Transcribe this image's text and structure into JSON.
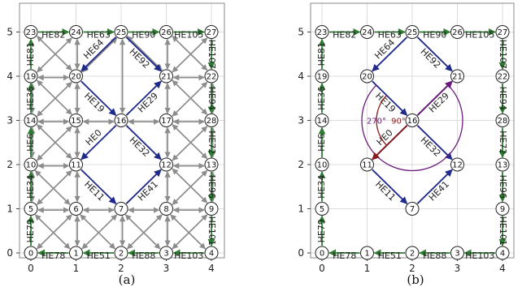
{
  "colors": {
    "grid": "#dcdcdc",
    "gray_edge": "#8c8c8c",
    "boundary": "#2e7d32",
    "interior": "#1f2a8a",
    "angle_red": "#8b1a1a",
    "angle_purple": "#6a1b7a"
  },
  "panels": [
    {
      "caption": "(a)",
      "x_ticks": [
        "0",
        "1",
        "2",
        "3",
        "4"
      ],
      "y_ticks": [
        "0",
        "1",
        "2",
        "3",
        "4",
        "5"
      ],
      "vertices": [
        {
          "id": "0",
          "x": 0,
          "y": 0
        },
        {
          "id": "1",
          "x": 1,
          "y": 0
        },
        {
          "id": "2",
          "x": 2,
          "y": 0
        },
        {
          "id": "3",
          "x": 3,
          "y": 0
        },
        {
          "id": "4",
          "x": 4,
          "y": 0
        },
        {
          "id": "5",
          "x": 0,
          "y": 1
        },
        {
          "id": "6",
          "x": 1,
          "y": 1
        },
        {
          "id": "7",
          "x": 2,
          "y": 1
        },
        {
          "id": "8",
          "x": 3,
          "y": 1
        },
        {
          "id": "9",
          "x": 4,
          "y": 1
        },
        {
          "id": "10",
          "x": 0,
          "y": 2
        },
        {
          "id": "11",
          "x": 1,
          "y": 2
        },
        {
          "id": "12",
          "x": 3,
          "y": 2
        },
        {
          "id": "13",
          "x": 4,
          "y": 2
        },
        {
          "id": "14",
          "x": 0,
          "y": 3
        },
        {
          "id": "15",
          "x": 1,
          "y": 3
        },
        {
          "id": "16",
          "x": 2,
          "y": 3
        },
        {
          "id": "17",
          "x": 3,
          "y": 3
        },
        {
          "id": "28",
          "x": 4,
          "y": 3
        },
        {
          "id": "19",
          "x": 0,
          "y": 4
        },
        {
          "id": "20",
          "x": 1,
          "y": 4
        },
        {
          "id": "21",
          "x": 3,
          "y": 4
        },
        {
          "id": "22",
          "x": 4,
          "y": 4
        },
        {
          "id": "23",
          "x": 0,
          "y": 5
        },
        {
          "id": "24",
          "x": 1,
          "y": 5
        },
        {
          "id": "25",
          "x": 2,
          "y": 5
        },
        {
          "id": "26",
          "x": 3,
          "y": 5
        },
        {
          "id": "27",
          "x": 4,
          "y": 5
        }
      ],
      "gray_edges": [
        [
          "5",
          "6"
        ],
        [
          "6",
          "7"
        ],
        [
          "7",
          "8"
        ],
        [
          "8",
          "9"
        ],
        [
          "10",
          "11"
        ],
        [
          "12",
          "13"
        ],
        [
          "14",
          "15"
        ],
        [
          "15",
          "16"
        ],
        [
          "16",
          "17"
        ],
        [
          "17",
          "28"
        ],
        [
          "19",
          "20"
        ],
        [
          "21",
          "22"
        ],
        [
          "5",
          "10"
        ],
        [
          "10",
          "14"
        ],
        [
          "14",
          "19"
        ],
        [
          "1",
          "6"
        ],
        [
          "6",
          "11"
        ],
        [
          "11",
          "15"
        ],
        [
          "15",
          "20"
        ],
        [
          "20",
          "24"
        ],
        [
          "2",
          "7"
        ],
        [
          "3",
          "8"
        ],
        [
          "8",
          "12"
        ],
        [
          "12",
          "17"
        ],
        [
          "17",
          "21"
        ],
        [
          "21",
          "26"
        ],
        [
          "9",
          "13"
        ],
        [
          "13",
          "28"
        ],
        [
          "28",
          "22"
        ],
        [
          "16",
          "25"
        ],
        [
          "0",
          "6"
        ],
        [
          "5",
          "1"
        ],
        [
          "1",
          "7"
        ],
        [
          "6",
          "2"
        ],
        [
          "2",
          "8"
        ],
        [
          "7",
          "3"
        ],
        [
          "3",
          "9"
        ],
        [
          "8",
          "4"
        ],
        [
          "5",
          "11"
        ],
        [
          "10",
          "6"
        ],
        [
          "8",
          "13"
        ],
        [
          "9",
          "12"
        ],
        [
          "10",
          "15"
        ],
        [
          "11",
          "14"
        ],
        [
          "12",
          "28"
        ],
        [
          "13",
          "17"
        ],
        [
          "14",
          "20"
        ],
        [
          "15",
          "19"
        ],
        [
          "17",
          "22"
        ],
        [
          "28",
          "21"
        ],
        [
          "19",
          "24"
        ],
        [
          "20",
          "23"
        ],
        [
          "20",
          "25"
        ],
        [
          "21",
          "27"
        ],
        [
          "22",
          "26"
        ],
        [
          "21",
          "25"
        ]
      ],
      "boundary_edges": [
        {
          "from": "23",
          "to": "24",
          "label": "HE82"
        },
        {
          "from": "24",
          "to": "25",
          "label": "HE63"
        },
        {
          "from": "25",
          "to": "26",
          "label": "HE90"
        },
        {
          "from": "26",
          "to": "27",
          "label": "HE105"
        },
        {
          "from": "27",
          "to": "22",
          "label": "HE107"
        },
        {
          "from": "22",
          "to": "28",
          "label": "HE94"
        },
        {
          "from": "28",
          "to": "13",
          "label": "HE72"
        },
        {
          "from": "13",
          "to": "9",
          "label": "HE96"
        },
        {
          "from": "9",
          "to": "4",
          "label": "HE101"
        },
        {
          "from": "4",
          "to": "3",
          "label": "HE103"
        },
        {
          "from": "3",
          "to": "2",
          "label": "HE88"
        },
        {
          "from": "2",
          "to": "1",
          "label": "HE51"
        },
        {
          "from": "1",
          "to": "0",
          "label": "HE78"
        },
        {
          "from": "0",
          "to": "5",
          "label": "HE79"
        },
        {
          "from": "5",
          "to": "10",
          "label": "HE34"
        },
        {
          "from": "10",
          "to": "14",
          "label": "HE6"
        },
        {
          "from": "14",
          "to": "19",
          "label": "HE36"
        },
        {
          "from": "19",
          "to": "23",
          "label": "HE81"
        }
      ],
      "interior_edges": [
        {
          "from": "25",
          "to": "20",
          "label": "HE64"
        },
        {
          "from": "25",
          "to": "21",
          "label": "HE92"
        },
        {
          "from": "20",
          "to": "16",
          "label": "HE19"
        },
        {
          "from": "16",
          "to": "21",
          "label": "HE29"
        },
        {
          "from": "16",
          "to": "11",
          "label": "HE0"
        },
        {
          "from": "16",
          "to": "12",
          "label": "HE32"
        },
        {
          "from": "11",
          "to": "7",
          "label": "HE11"
        },
        {
          "from": "7",
          "to": "12",
          "label": "HE41"
        }
      ]
    },
    {
      "caption": "(b)",
      "x_ticks": [
        "0",
        "1",
        "2",
        "3",
        "4"
      ],
      "y_ticks": [
        "0",
        "1",
        "2",
        "3",
        "4",
        "5"
      ],
      "vertices": [
        {
          "id": "0",
          "x": 0,
          "y": 0
        },
        {
          "id": "1",
          "x": 1,
          "y": 0
        },
        {
          "id": "2",
          "x": 2,
          "y": 0
        },
        {
          "id": "3",
          "x": 3,
          "y": 0
        },
        {
          "id": "4",
          "x": 4,
          "y": 0
        },
        {
          "id": "5",
          "x": 0,
          "y": 1
        },
        {
          "id": "7",
          "x": 2,
          "y": 1
        },
        {
          "id": "9",
          "x": 4,
          "y": 1
        },
        {
          "id": "10",
          "x": 0,
          "y": 2
        },
        {
          "id": "11",
          "x": 1,
          "y": 2
        },
        {
          "id": "12",
          "x": 3,
          "y": 2
        },
        {
          "id": "13",
          "x": 4,
          "y": 2
        },
        {
          "id": "14",
          "x": 0,
          "y": 3
        },
        {
          "id": "16",
          "x": 2,
          "y": 3
        },
        {
          "id": "28",
          "x": 4,
          "y": 3
        },
        {
          "id": "19",
          "x": 0,
          "y": 4
        },
        {
          "id": "20",
          "x": 1,
          "y": 4
        },
        {
          "id": "21",
          "x": 3,
          "y": 4
        },
        {
          "id": "22",
          "x": 4,
          "y": 4
        },
        {
          "id": "23",
          "x": 0,
          "y": 5
        },
        {
          "id": "24",
          "x": 1,
          "y": 5
        },
        {
          "id": "25",
          "x": 2,
          "y": 5
        },
        {
          "id": "26",
          "x": 3,
          "y": 5
        },
        {
          "id": "27",
          "x": 4,
          "y": 5
        }
      ],
      "gray_edges": [],
      "boundary_edges": [
        {
          "from": "23",
          "to": "24",
          "label": "HE82"
        },
        {
          "from": "24",
          "to": "25",
          "label": "HE63"
        },
        {
          "from": "25",
          "to": "26",
          "label": "HE90"
        },
        {
          "from": "26",
          "to": "27",
          "label": "HE105"
        },
        {
          "from": "27",
          "to": "22",
          "label": "HE107"
        },
        {
          "from": "22",
          "to": "28",
          "label": "HE94"
        },
        {
          "from": "28",
          "to": "13",
          "label": "HE72"
        },
        {
          "from": "13",
          "to": "9",
          "label": "HE96"
        },
        {
          "from": "9",
          "to": "4",
          "label": "HE101"
        },
        {
          "from": "4",
          "to": "3",
          "label": "HE103"
        },
        {
          "from": "3",
          "to": "2",
          "label": "HE88"
        },
        {
          "from": "2",
          "to": "1",
          "label": "HE51"
        },
        {
          "from": "1",
          "to": "0",
          "label": "HE78"
        },
        {
          "from": "0",
          "to": "5",
          "label": "HE79"
        },
        {
          "from": "5",
          "to": "10",
          "label": "HE34"
        },
        {
          "from": "10",
          "to": "14",
          "label": "HE6"
        },
        {
          "from": "14",
          "to": "19",
          "label": "HE36"
        },
        {
          "from": "19",
          "to": "23",
          "label": "HE81"
        }
      ],
      "interior_edges": [
        {
          "from": "25",
          "to": "20",
          "label": "HE64"
        },
        {
          "from": "25",
          "to": "21",
          "label": "HE92"
        },
        {
          "from": "20",
          "to": "16",
          "label": "HE19"
        },
        {
          "from": "16",
          "to": "21",
          "label": "HE29"
        },
        {
          "from": "16",
          "to": "11",
          "label": "HE0"
        },
        {
          "from": "16",
          "to": "12",
          "label": "HE32"
        },
        {
          "from": "11",
          "to": "7",
          "label": "HE11"
        },
        {
          "from": "7",
          "to": "12",
          "label": "HE41"
        }
      ],
      "angle_annotation": {
        "center": "16",
        "red_label": "90°",
        "purple_label": "270°"
      }
    }
  ]
}
